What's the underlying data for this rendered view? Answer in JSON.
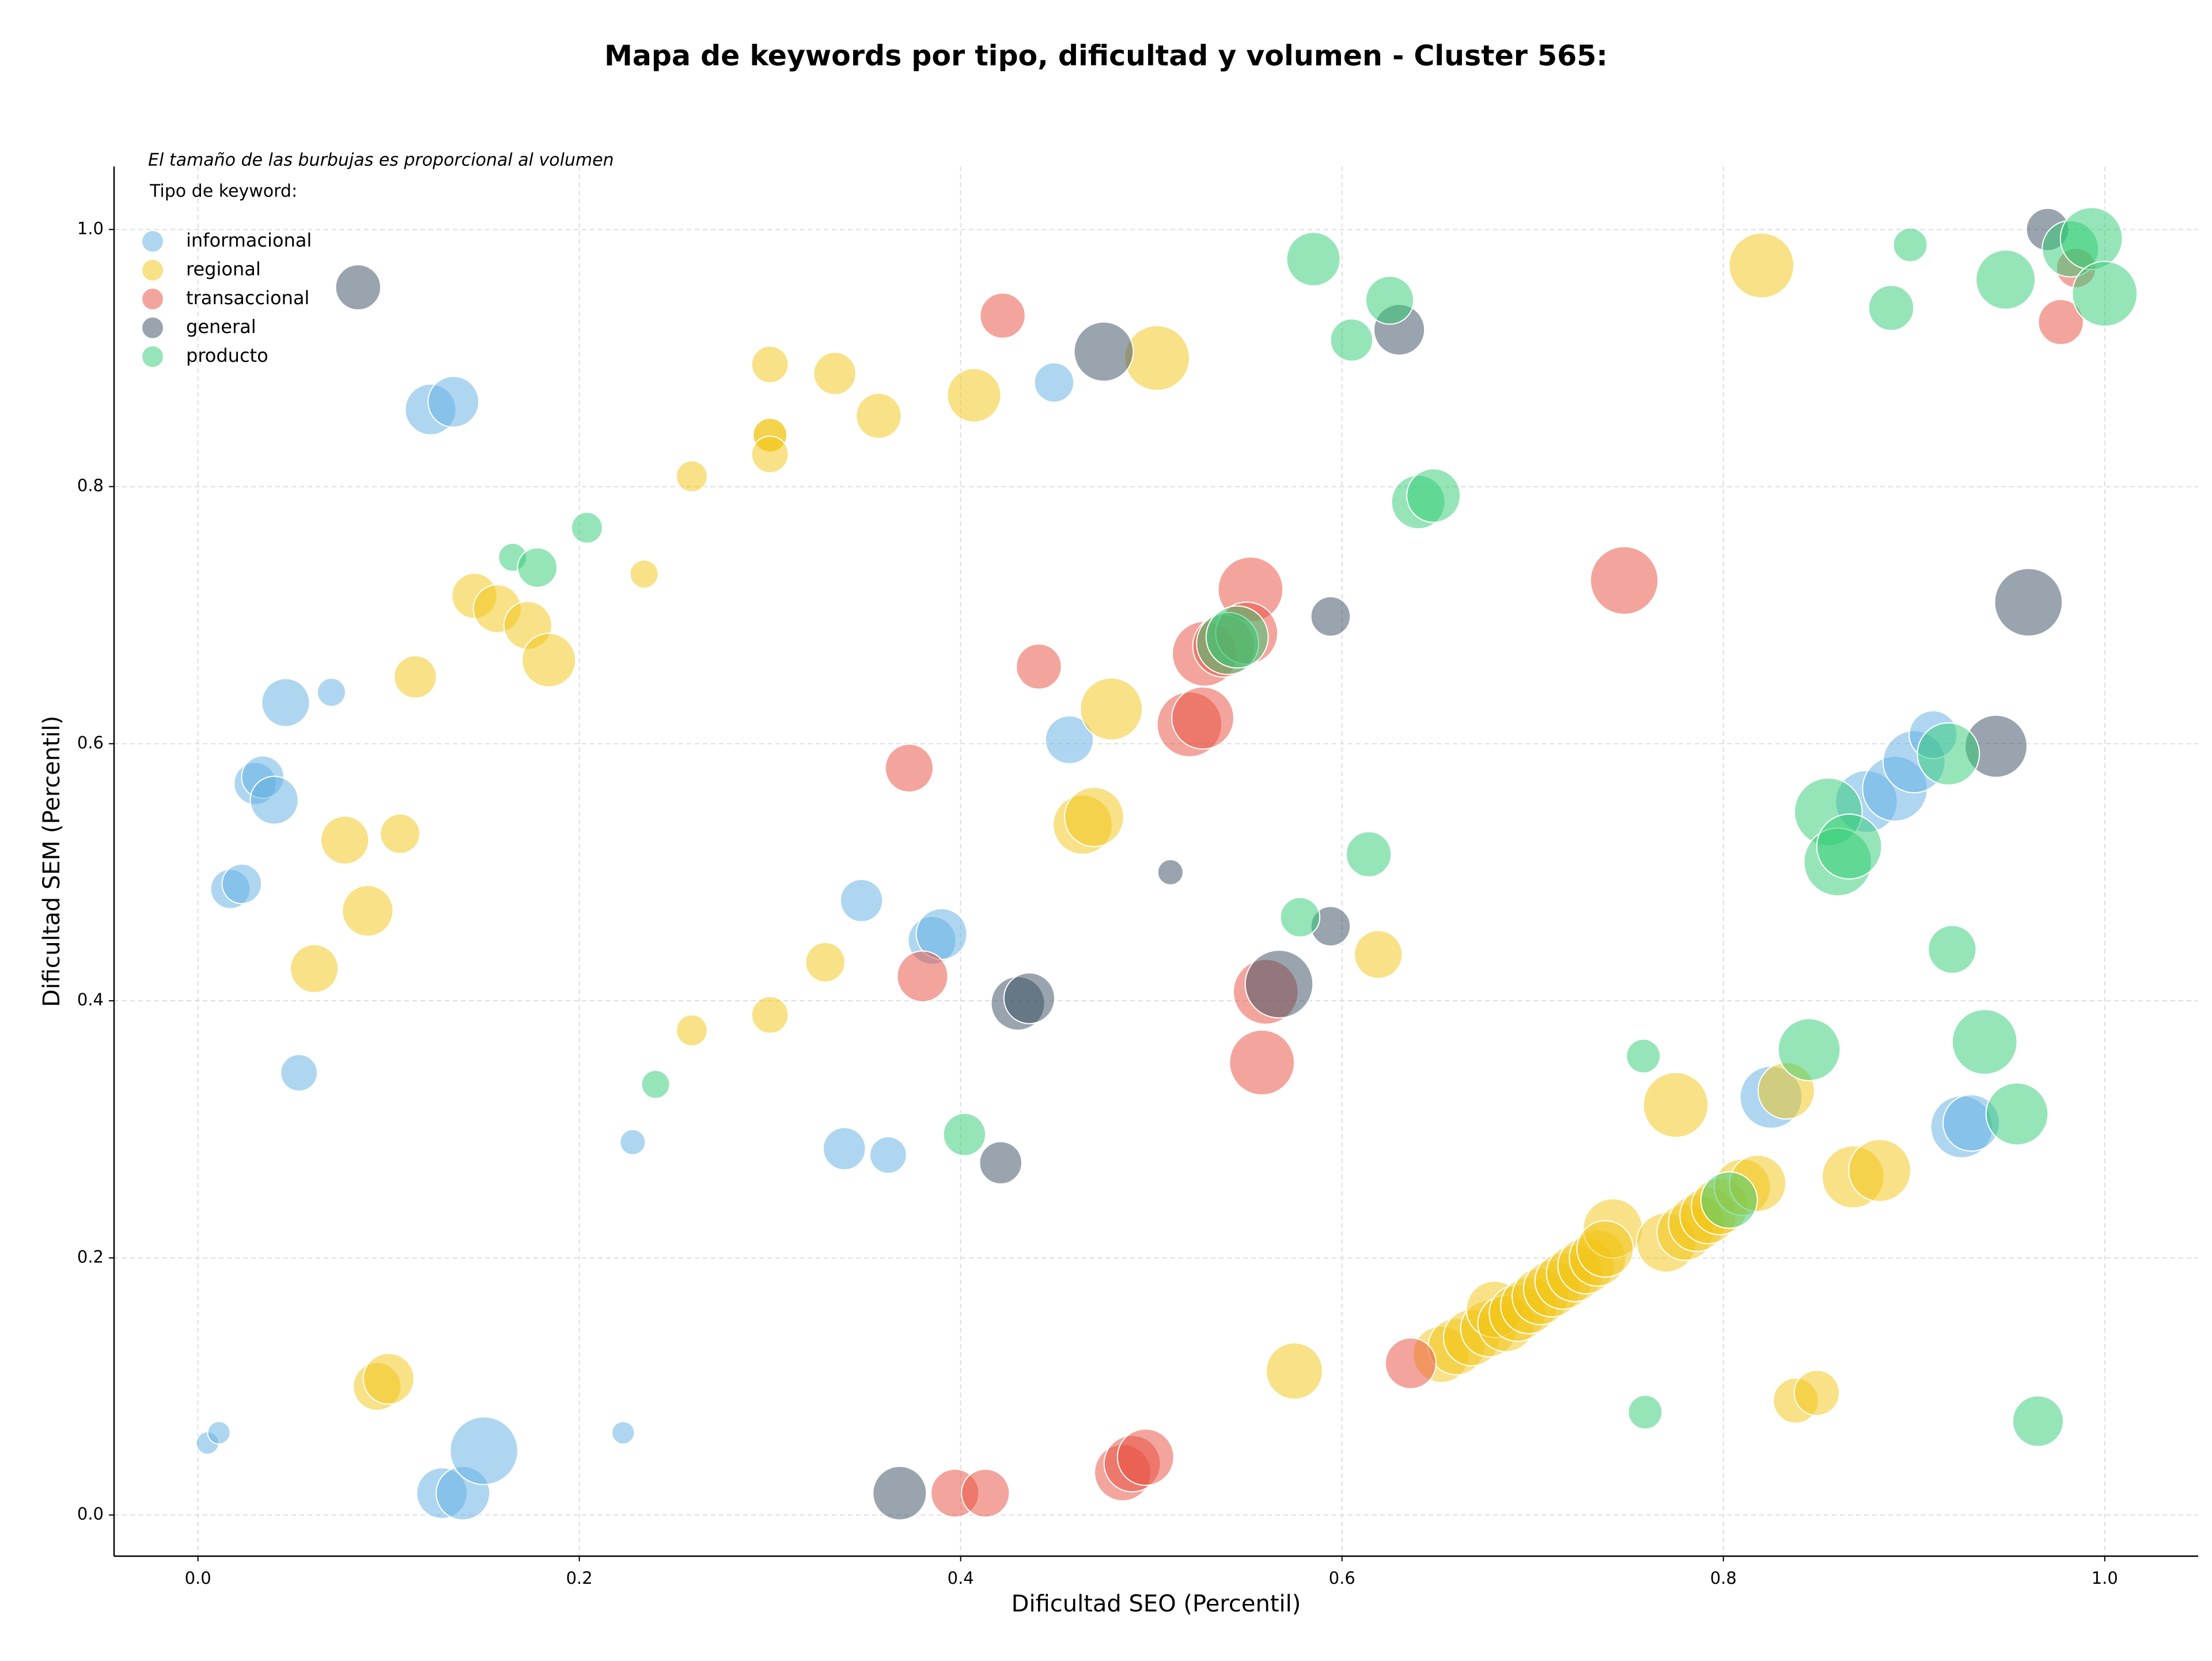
{
  "chart_data": {
    "type": "scatter",
    "title": "Mapa de keywords por tipo, dificultad y volumen - Cluster 565:",
    "subtitle": "El tamaño de las burbujas es proporcional al volumen",
    "legend_title": "Tipo de keyword:",
    "x_label": "Dificultad SEO (Percentil)",
    "y_label": "Dificultad SEM (Percentil)",
    "xlim": [
      -0.044,
      1.049
    ],
    "ylim": [
      -0.032,
      1.049
    ],
    "xticks": [
      {
        "value": 0,
        "label": "0.0"
      },
      0.2,
      0.4,
      0.6,
      0.8,
      {
        "value": 1,
        "label": "1.0"
      }
    ],
    "yticks": [
      {
        "value": 0,
        "label": "0.0"
      },
      0.2,
      0.4,
      0.6,
      0.8,
      {
        "value": 1,
        "label": "1.0"
      }
    ],
    "grid": true,
    "legend": "upper left",
    "series": [
      {
        "name": "informacional",
        "color": "#5dade2",
        "x": [
          0.122,
          0.134,
          0.046,
          0.07,
          0.03,
          0.034,
          0.04,
          0.017,
          0.023,
          0.053,
          0.005,
          0.011,
          0.128,
          0.139,
          0.15,
          0.223,
          0.228,
          0.339,
          0.362,
          0.348,
          0.385,
          0.39,
          0.449,
          0.457,
          0.825,
          0.875,
          0.89,
          0.9,
          0.91,
          0.925,
          0.93
        ],
        "y": [
          0.86,
          0.866,
          0.632,
          0.64,
          0.569,
          0.574,
          0.556,
          0.487,
          0.491,
          0.344,
          0.056,
          0.064,
          0.017,
          0.017,
          0.05,
          0.064,
          0.29,
          0.285,
          0.28,
          0.478,
          0.447,
          0.452,
          0.881,
          0.603,
          0.325,
          0.555,
          0.565,
          0.586,
          0.607,
          0.302,
          0.305
        ],
        "sizes": [
          324,
          324,
          289,
          100,
          225,
          225,
          289,
          196,
          196,
          169,
          64,
          64,
          324,
          361,
          576,
          64,
          81,
          225,
          169,
          225,
          289,
          324,
          196,
          289,
          484,
          484,
          529,
          484,
          289,
          484,
          400
        ]
      },
      {
        "name": "regional",
        "color": "#f1c40f",
        "x": [
          0.3,
          0.334,
          0.357,
          0.3,
          0.3,
          0.3,
          0.259,
          0.407,
          0.503,
          0.234,
          0.145,
          0.157,
          0.173,
          0.184,
          0.114,
          0.077,
          0.106,
          0.089,
          0.061,
          0.329,
          0.259,
          0.3,
          0.479,
          0.464,
          0.47,
          0.094,
          0.1,
          0.575,
          0.619,
          0.82,
          0.775,
          0.833,
          0.838,
          0.849,
          0.868,
          0.882,
          0.652,
          0.66,
          0.668,
          0.677,
          0.68,
          0.686,
          0.692,
          0.698,
          0.704,
          0.71,
          0.716,
          0.722,
          0.728,
          0.734,
          0.742,
          0.738,
          0.77,
          0.78,
          0.786,
          0.792,
          0.798,
          0.81,
          0.818
        ],
        "y": [
          0.895,
          0.888,
          0.855,
          0.84,
          0.84,
          0.825,
          0.808,
          0.871,
          0.9,
          0.732,
          0.715,
          0.705,
          0.692,
          0.665,
          0.652,
          0.525,
          0.53,
          0.47,
          0.425,
          0.43,
          0.377,
          0.389,
          0.627,
          0.537,
          0.543,
          0.1,
          0.106,
          0.112,
          0.436,
          0.972,
          0.319,
          0.33,
          0.089,
          0.095,
          0.263,
          0.268,
          0.125,
          0.131,
          0.138,
          0.145,
          0.16,
          0.149,
          0.157,
          0.163,
          0.17,
          0.176,
          0.182,
          0.188,
          0.194,
          0.2,
          0.223,
          0.207,
          0.212,
          0.22,
          0.227,
          0.233,
          0.24,
          0.255,
          0.258
        ],
        "sizes": [
          169,
          225,
          256,
          144,
          144,
          169,
          121,
          361,
          529,
          100,
          256,
          289,
          289,
          361,
          225,
          289,
          196,
          324,
          289,
          196,
          121,
          169,
          484,
          441,
          441,
          289,
          324,
          400,
          289,
          529,
          529,
          400,
          256,
          256,
          484,
          484,
          400,
          400,
          400,
          400,
          400,
          400,
          400,
          400,
          400,
          400,
          400,
          400,
          400,
          400,
          441,
          400,
          441,
          400,
          400,
          400,
          400,
          400,
          400
        ]
      },
      {
        "name": "transaccional",
        "color": "#e74c3c",
        "x": [
          0.422,
          0.441,
          0.373,
          0.38,
          0.552,
          0.528,
          0.538,
          0.55,
          0.52,
          0.527,
          0.56,
          0.558,
          0.636,
          0.397,
          0.413,
          0.485,
          0.49,
          0.497,
          0.748,
          0.977,
          0.985
        ],
        "y": [
          0.933,
          0.66,
          0.581,
          0.419,
          0.72,
          0.67,
          0.676,
          0.686,
          0.615,
          0.62,
          0.407,
          0.352,
          0.118,
          0.017,
          0.017,
          0.033,
          0.04,
          0.045,
          0.727,
          0.928,
          0.97
        ],
        "sizes": [
          256,
          256,
          289,
          324,
          529,
          529,
          484,
          484,
          529,
          484,
          529,
          529,
          324,
          289,
          289,
          400,
          400,
          400,
          576,
          256,
          196
        ]
      },
      {
        "name": "general",
        "color": "#34495e",
        "x": [
          0.084,
          0.475,
          0.63,
          0.594,
          0.51,
          0.567,
          0.594,
          0.43,
          0.436,
          0.421,
          0.368,
          0.96,
          0.943,
          0.97
        ],
        "y": [
          0.955,
          0.905,
          0.922,
          0.699,
          0.5,
          0.413,
          0.458,
          0.398,
          0.402,
          0.274,
          0.017,
          0.71,
          0.598,
          1.0
        ],
        "sizes": [
          256,
          441,
          324,
          196,
          81,
          576,
          196,
          361,
          324,
          225,
          361,
          576,
          484,
          225
        ]
      },
      {
        "name": "producto",
        "color": "#2ecc71",
        "x": [
          0.585,
          0.625,
          0.605,
          0.64,
          0.648,
          0.165,
          0.178,
          0.204,
          0.54,
          0.545,
          0.614,
          0.578,
          0.24,
          0.402,
          0.758,
          0.759,
          0.855,
          0.86,
          0.866,
          0.918,
          0.845,
          0.92,
          0.937,
          0.954,
          0.965,
          0.803,
          0.888,
          0.898,
          0.948,
          0.982,
          0.993,
          1.0
        ],
        "y": [
          0.977,
          0.945,
          0.914,
          0.788,
          0.793,
          0.745,
          0.737,
          0.768,
          0.678,
          0.683,
          0.514,
          0.465,
          0.335,
          0.296,
          0.357,
          0.08,
          0.547,
          0.508,
          0.52,
          0.592,
          0.362,
          0.44,
          0.368,
          0.312,
          0.073,
          0.245,
          0.939,
          0.988,
          0.961,
          0.985,
          0.993,
          0.95
        ],
        "sizes": [
          361,
          289,
          225,
          361,
          361,
          100,
          196,
          121,
          484,
          484,
          256,
          196,
          100,
          225,
          144,
          144,
          576,
          576,
          529,
          484,
          484,
          289,
          529,
          484,
          324,
          400,
          256,
          144,
          441,
          400,
          484,
          529
        ]
      }
    ]
  }
}
